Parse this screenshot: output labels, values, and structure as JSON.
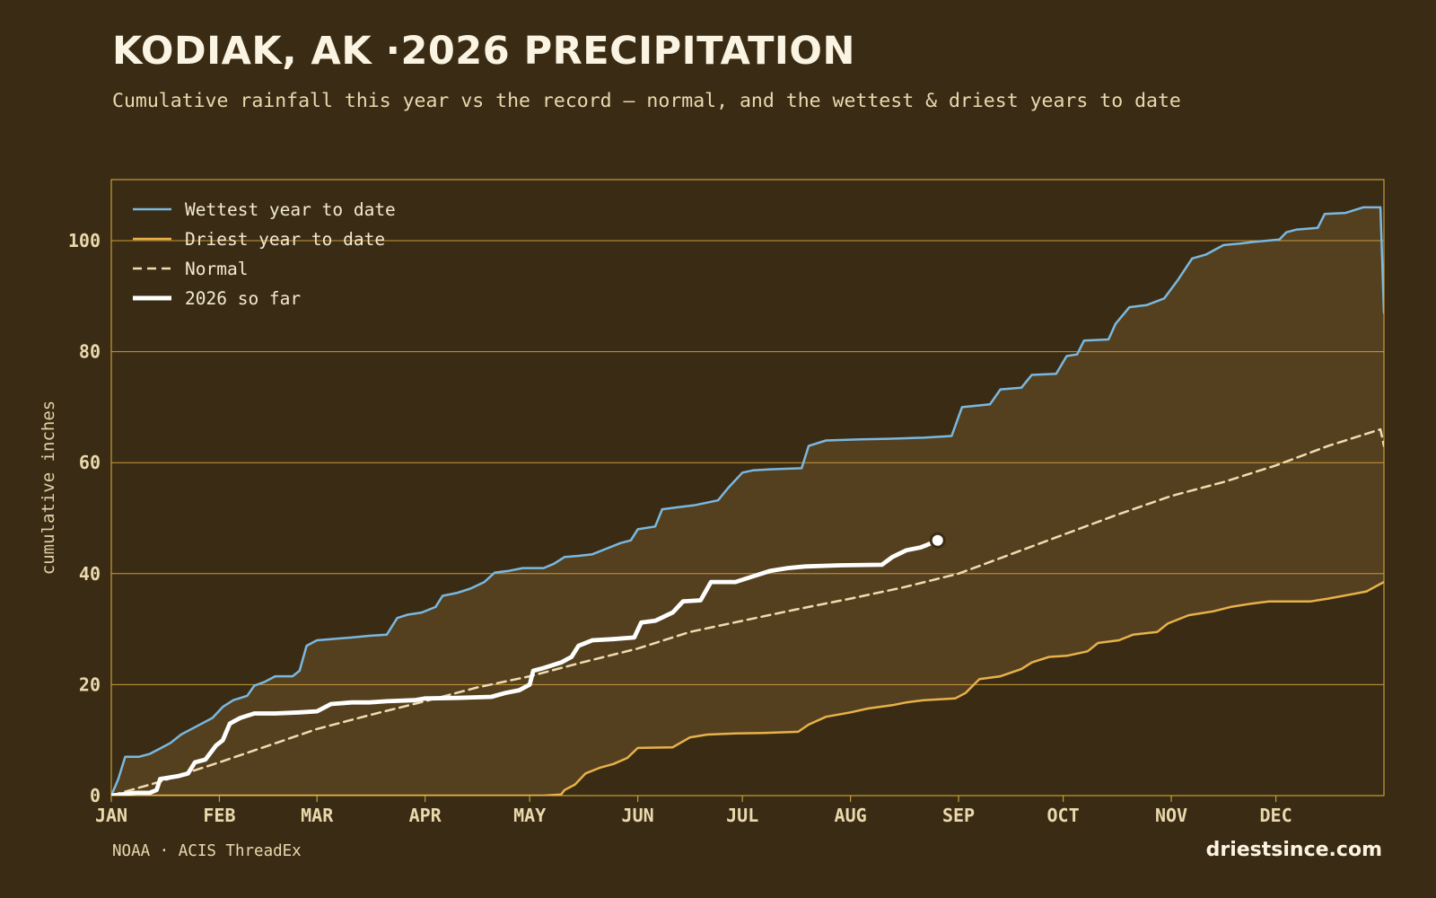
{
  "header": {
    "title": "KODIAK, AK ·2026 PRECIPITATION",
    "subtitle": "Cumulative rainfall this year vs the record — normal, and the wettest & driest years to date"
  },
  "footer": {
    "source": "NOAA · ACIS ThreadEx",
    "brand": "driestsince.com"
  },
  "colors": {
    "background": "#3a2c14",
    "band_fill": "#54401e",
    "grid": "#c99a3a",
    "wettest": "#7ab8e0",
    "driest": "#e8b14a",
    "normal": "#efdcb0",
    "current": "#ffffff"
  },
  "chart_data": {
    "type": "line",
    "title": "KODIAK, AK ·2026 PRECIPITATION",
    "xlabel": "",
    "ylabel": "cumulative inches",
    "x_unit": "day of year",
    "xlim": [
      1,
      366
    ],
    "ylim": [
      0,
      111
    ],
    "grid": true,
    "legend_position": "top-left",
    "month_ticks": [
      {
        "label": "JAN",
        "day": 1
      },
      {
        "label": "FEB",
        "day": 32
      },
      {
        "label": "MAR",
        "day": 60
      },
      {
        "label": "APR",
        "day": 91
      },
      {
        "label": "MAY",
        "day": 121
      },
      {
        "label": "JUN",
        "day": 152
      },
      {
        "label": "JUL",
        "day": 182
      },
      {
        "label": "AUG",
        "day": 213
      },
      {
        "label": "SEP",
        "day": 244
      },
      {
        "label": "OCT",
        "day": 274
      },
      {
        "label": "NOV",
        "day": 305
      },
      {
        "label": "DEC",
        "day": 335
      }
    ],
    "y_ticks": [
      0,
      20,
      40,
      60,
      80,
      100
    ],
    "series": [
      {
        "name": "Wettest year to date",
        "color": "#7ab8e0",
        "points": [
          [
            1,
            0
          ],
          [
            3,
            3
          ],
          [
            5,
            7
          ],
          [
            9,
            7
          ],
          [
            12,
            7.5
          ],
          [
            15,
            8.5
          ],
          [
            18,
            9.5
          ],
          [
            21,
            11
          ],
          [
            24,
            12
          ],
          [
            27,
            13
          ],
          [
            30,
            14
          ],
          [
            33,
            16
          ],
          [
            36,
            17.2
          ],
          [
            40,
            18
          ],
          [
            42,
            19.8
          ],
          [
            45,
            20.5
          ],
          [
            48,
            21.5
          ],
          [
            53,
            21.5
          ],
          [
            55,
            22.5
          ],
          [
            57,
            27
          ],
          [
            60,
            28
          ],
          [
            64,
            28.2
          ],
          [
            70,
            28.5
          ],
          [
            75,
            28.8
          ],
          [
            80,
            29
          ],
          [
            83,
            32
          ],
          [
            86,
            32.6
          ],
          [
            90,
            33
          ],
          [
            94,
            34
          ],
          [
            96,
            36
          ],
          [
            100,
            36.5
          ],
          [
            104,
            37.3
          ],
          [
            108,
            38.5
          ],
          [
            111,
            40.2
          ],
          [
            115,
            40.5
          ],
          [
            119,
            41
          ],
          [
            125,
            41
          ],
          [
            128,
            41.8
          ],
          [
            131,
            43
          ],
          [
            135,
            43.2
          ],
          [
            139,
            43.5
          ],
          [
            143,
            44.5
          ],
          [
            147,
            45.5
          ],
          [
            150,
            46
          ],
          [
            152,
            48
          ],
          [
            157,
            48.5
          ],
          [
            159,
            51.6
          ],
          [
            164,
            52
          ],
          [
            168,
            52.3
          ],
          [
            175,
            53.2
          ],
          [
            178,
            55.5
          ],
          [
            182,
            58.2
          ],
          [
            185,
            58.6
          ],
          [
            190,
            58.8
          ],
          [
            199,
            59
          ],
          [
            201,
            63
          ],
          [
            206,
            64
          ],
          [
            216,
            64.2
          ],
          [
            224,
            64.3
          ],
          [
            234,
            64.5
          ],
          [
            242,
            64.8
          ],
          [
            245,
            70
          ],
          [
            253,
            70.5
          ],
          [
            256,
            73.2
          ],
          [
            262,
            73.5
          ],
          [
            265,
            75.8
          ],
          [
            272,
            76
          ],
          [
            275,
            79.2
          ],
          [
            278,
            79.5
          ],
          [
            280,
            82
          ],
          [
            287,
            82.2
          ],
          [
            289,
            85
          ],
          [
            293,
            88
          ],
          [
            298,
            88.4
          ],
          [
            303,
            89.6
          ],
          [
            307,
            93
          ],
          [
            311,
            96.8
          ],
          [
            315,
            97.5
          ],
          [
            320,
            99.2
          ],
          [
            325,
            99.5
          ],
          [
            329,
            99.8
          ],
          [
            336,
            100.2
          ],
          [
            338,
            101.5
          ],
          [
            341,
            102
          ],
          [
            347,
            102.3
          ],
          [
            349,
            104.8
          ],
          [
            355,
            105
          ],
          [
            360,
            106
          ],
          [
            365,
            106
          ],
          [
            366,
            87
          ]
        ]
      },
      {
        "name": "Driest year to date",
        "color": "#e8b14a",
        "points": [
          [
            1,
            0
          ],
          [
            125,
            0
          ],
          [
            130,
            0.2
          ],
          [
            131,
            1
          ],
          [
            134,
            2
          ],
          [
            137,
            4
          ],
          [
            141,
            5
          ],
          [
            145,
            5.7
          ],
          [
            149,
            6.8
          ],
          [
            152,
            8.6
          ],
          [
            162,
            8.7
          ],
          [
            167,
            10.5
          ],
          [
            172,
            11
          ],
          [
            180,
            11.2
          ],
          [
            188,
            11.3
          ],
          [
            198,
            11.5
          ],
          [
            201,
            12.8
          ],
          [
            206,
            14.2
          ],
          [
            213,
            15
          ],
          [
            218,
            15.7
          ],
          [
            225,
            16.3
          ],
          [
            229,
            16.8
          ],
          [
            234,
            17.2
          ],
          [
            243,
            17.5
          ],
          [
            246,
            18.5
          ],
          [
            250,
            21
          ],
          [
            256,
            21.5
          ],
          [
            262,
            22.8
          ],
          [
            265,
            24
          ],
          [
            270,
            25
          ],
          [
            275,
            25.2
          ],
          [
            281,
            26
          ],
          [
            284,
            27.5
          ],
          [
            290,
            28
          ],
          [
            294,
            29
          ],
          [
            301,
            29.5
          ],
          [
            304,
            31
          ],
          [
            310,
            32.5
          ],
          [
            317,
            33.2
          ],
          [
            322,
            34
          ],
          [
            328,
            34.6
          ],
          [
            333,
            35
          ],
          [
            345,
            35
          ],
          [
            350,
            35.5
          ],
          [
            356,
            36.2
          ],
          [
            361,
            36.8
          ],
          [
            366,
            38.5
          ]
        ]
      },
      {
        "name": "Normal",
        "color": "#efdcb0",
        "dashed": true,
        "points": [
          [
            1,
            0
          ],
          [
            15,
            2.5
          ],
          [
            32,
            6
          ],
          [
            46,
            9
          ],
          [
            60,
            12
          ],
          [
            75,
            14.5
          ],
          [
            91,
            17
          ],
          [
            106,
            19.5
          ],
          [
            121,
            21.5
          ],
          [
            136,
            24
          ],
          [
            152,
            26.5
          ],
          [
            167,
            29.5
          ],
          [
            182,
            31.5
          ],
          [
            197,
            33.5
          ],
          [
            213,
            35.5
          ],
          [
            228,
            37.5
          ],
          [
            244,
            40
          ],
          [
            259,
            43.5
          ],
          [
            274,
            47
          ],
          [
            289,
            50.5
          ],
          [
            305,
            54
          ],
          [
            320,
            56.5
          ],
          [
            335,
            59.5
          ],
          [
            350,
            63
          ],
          [
            365,
            66
          ],
          [
            366,
            63
          ]
        ]
      },
      {
        "name": "2026 so far",
        "color": "#ffffff",
        "points": [
          [
            1,
            0
          ],
          [
            8,
            0.5
          ],
          [
            12,
            0.5
          ],
          [
            14,
            1
          ],
          [
            15,
            3
          ],
          [
            20,
            3.5
          ],
          [
            23,
            4
          ],
          [
            25,
            6
          ],
          [
            28,
            6.5
          ],
          [
            31,
            9
          ],
          [
            33,
            10
          ],
          [
            35,
            13
          ],
          [
            38,
            14
          ],
          [
            42,
            14.8
          ],
          [
            48,
            14.8
          ],
          [
            55,
            15
          ],
          [
            60,
            15.2
          ],
          [
            64,
            16.5
          ],
          [
            70,
            16.8
          ],
          [
            75,
            16.8
          ],
          [
            80,
            17
          ],
          [
            88,
            17.2
          ],
          [
            91,
            17.5
          ],
          [
            100,
            17.6
          ],
          [
            110,
            17.8
          ],
          [
            114,
            18.5
          ],
          [
            118,
            19
          ],
          [
            121,
            20
          ],
          [
            122,
            22.5
          ],
          [
            125,
            23
          ],
          [
            130,
            24
          ],
          [
            133,
            25
          ],
          [
            135,
            27
          ],
          [
            139,
            28
          ],
          [
            145,
            28.2
          ],
          [
            151,
            28.5
          ],
          [
            153,
            31.2
          ],
          [
            157,
            31.5
          ],
          [
            162,
            33
          ],
          [
            165,
            35
          ],
          [
            170,
            35.2
          ],
          [
            173,
            38.5
          ],
          [
            180,
            38.5
          ],
          [
            185,
            39.5
          ],
          [
            190,
            40.5
          ],
          [
            195,
            41
          ],
          [
            200,
            41.3
          ],
          [
            210,
            41.5
          ],
          [
            222,
            41.6
          ],
          [
            225,
            43
          ],
          [
            229,
            44.2
          ],
          [
            233,
            44.7
          ],
          [
            235,
            45.2
          ],
          [
            238,
            46
          ]
        ]
      }
    ],
    "current_marker": {
      "day": 238,
      "value": 46
    }
  }
}
